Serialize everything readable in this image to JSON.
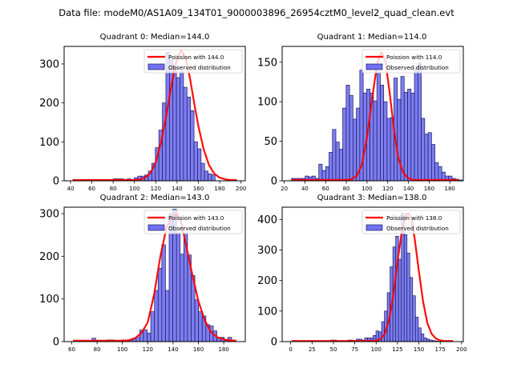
{
  "figure": {
    "suptitle": "Data file: modeM0/AS1A09_134T01_9000003896_26954cztM0_level2_quad_clean.evt"
  },
  "colors": {
    "bar_fill": "#7070f0",
    "bar_edge": "#1a1a60",
    "poisson_line": "#ff0000"
  },
  "chart_data": [
    {
      "type": "bar",
      "title": "Quadrant 0: Median=144.0",
      "median": 144.0,
      "xlabel": "",
      "ylabel": "",
      "xlim": [
        34,
        204
      ],
      "ylim": [
        0,
        345
      ],
      "xticks": [
        40,
        60,
        80,
        100,
        120,
        140,
        160,
        180,
        200
      ],
      "yticks": [
        0,
        100,
        200,
        300
      ],
      "grid": false,
      "legend": {
        "position": "top-right",
        "entries": [
          "Poission with 144.0",
          "Observed distribution"
        ]
      },
      "histogram": {
        "bin_edges_start": 80,
        "bin_width": 3.3,
        "counts": [
          5,
          5,
          5,
          0,
          5,
          0,
          8,
          12,
          12,
          15,
          25,
          45,
          85,
          130,
          200,
          330,
          310,
          290,
          265,
          280,
          240,
          215,
          180,
          100,
          82,
          45,
          25,
          18,
          15
        ]
      },
      "poisson_curve": {
        "x": [
          42,
          60,
          80,
          100,
          105,
          110,
          115,
          120,
          125,
          130,
          135,
          140,
          144,
          148,
          152,
          156,
          160,
          165,
          170,
          175,
          180,
          185,
          190,
          196
        ],
        "y": [
          2,
          2,
          2,
          2,
          3,
          8,
          20,
          48,
          100,
          170,
          250,
          315,
          335,
          315,
          265,
          200,
          140,
          80,
          40,
          18,
          8,
          4,
          2,
          2
        ]
      }
    },
    {
      "type": "bar",
      "title": "Quadrant 1: Median=114.0",
      "median": 114.0,
      "xlabel": "",
      "ylabel": "",
      "xlim": [
        18,
        193
      ],
      "ylim": [
        0,
        170
      ],
      "xticks": [
        20,
        40,
        60,
        80,
        100,
        120,
        140,
        160,
        180
      ],
      "yticks": [
        0,
        50,
        100,
        150
      ],
      "grid": false,
      "legend": {
        "position": "top-right",
        "entries": [
          "Poission with 114.0",
          "Observed distribution"
        ]
      },
      "histogram": {
        "bin_edges_start": 27,
        "bin_width": 3.3,
        "counts": [
          3,
          3,
          3,
          3,
          6,
          5,
          6,
          3,
          21,
          13,
          18,
          36,
          65,
          49,
          40,
          92,
          121,
          108,
          78,
          92,
          140,
          111,
          116,
          111,
          101,
          138,
          121,
          100,
          79,
          80,
          130,
          103,
          132,
          112,
          116,
          111,
          143,
          149,
          79,
          59,
          61,
          46,
          23,
          18,
          11,
          6,
          6,
          3,
          2,
          1
        ]
      },
      "poisson_curve": {
        "x": [
          27,
          50,
          70,
          80,
          85,
          90,
          95,
          100,
          105,
          110,
          114,
          118,
          122,
          126,
          130,
          135,
          140,
          145,
          150,
          160,
          170,
          188
        ],
        "y": [
          1,
          1,
          1,
          1,
          2,
          6,
          20,
          55,
          105,
          150,
          163,
          150,
          110,
          65,
          30,
          10,
          3,
          1,
          1,
          1,
          1,
          1
        ]
      }
    },
    {
      "type": "bar",
      "title": "Quadrant 2: Median=143.0",
      "median": 143.0,
      "xlabel": "",
      "ylabel": "",
      "xlim": [
        54,
        197
      ],
      "ylim": [
        0,
        315
      ],
      "xticks": [
        60,
        80,
        100,
        120,
        140,
        160,
        180
      ],
      "yticks": [
        0,
        100,
        200,
        300
      ],
      "grid": false,
      "legend": {
        "position": "top-right",
        "entries": [
          "Poission with 143.0",
          "Observed distribution"
        ]
      },
      "histogram": {
        "bin_edges_start": 76,
        "bin_width": 2.9,
        "counts": [
          8,
          3,
          0,
          0,
          4,
          4,
          0,
          0,
          4,
          4,
          4,
          8,
          10,
          27,
          28,
          20,
          70,
          120,
          172,
          227,
          120,
          300,
          310,
          255,
          205,
          255,
          203,
          155,
          98,
          70,
          60,
          40,
          37,
          25,
          10,
          10,
          3,
          10
        ]
      },
      "poisson_curve": {
        "x": [
          61,
          80,
          100,
          105,
          110,
          115,
          120,
          125,
          130,
          135,
          140,
          143,
          146,
          150,
          155,
          160,
          165,
          170,
          175,
          180,
          185,
          190
        ],
        "y": [
          2,
          2,
          2,
          3,
          8,
          20,
          45,
          110,
          200,
          270,
          295,
          300,
          285,
          230,
          160,
          95,
          50,
          22,
          10,
          5,
          3,
          2
        ]
      }
    },
    {
      "type": "bar",
      "title": "Quadrant 3: Median=138.0",
      "median": 138.0,
      "xlabel": "",
      "ylabel": "",
      "xlim": [
        -10,
        202
      ],
      "ylim": [
        0,
        440
      ],
      "xticks": [
        0,
        25,
        50,
        75,
        100,
        125,
        150,
        175,
        200
      ],
      "yticks": [
        0,
        100,
        200,
        300,
        400
      ],
      "grid": false,
      "legend": {
        "position": "top-right",
        "entries": [
          "Poission with 138.0",
          "Observed distribution"
        ]
      },
      "histogram": {
        "bin_edges_start": 47,
        "bin_width": 3.3,
        "counts": [
          5,
          5,
          0,
          0,
          0,
          0,
          5,
          5,
          0,
          8,
          8,
          5,
          12,
          12,
          12,
          20,
          35,
          32,
          65,
          100,
          160,
          245,
          310,
          345,
          270,
          420,
          350,
          290,
          210,
          150,
          80,
          45,
          25,
          12,
          8,
          5,
          3,
          2
        ]
      },
      "poisson_curve": {
        "x": [
          1,
          50,
          90,
          100,
          105,
          110,
          115,
          120,
          125,
          130,
          135,
          138,
          141,
          145,
          150,
          155,
          160,
          165,
          170,
          175,
          180,
          190
        ],
        "y": [
          2,
          2,
          2,
          3,
          8,
          25,
          70,
          150,
          260,
          360,
          415,
          420,
          405,
          340,
          230,
          130,
          60,
          25,
          10,
          4,
          2,
          2
        ]
      }
    }
  ]
}
